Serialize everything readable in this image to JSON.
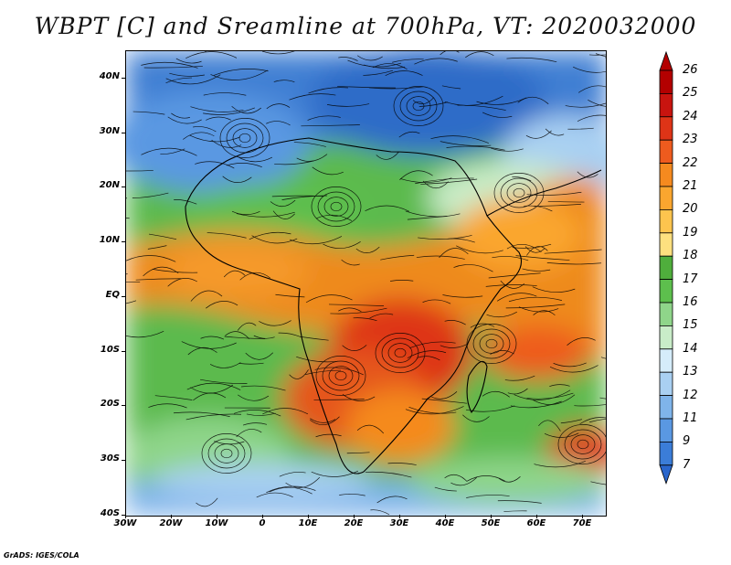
{
  "title": "WBPT [C] and Sreamline at 700hPa, VT: 2020032000",
  "footer": "GrADS: IGES/COLA",
  "map": {
    "lon_range": [
      -30,
      75
    ],
    "lat_range": [
      -40,
      45
    ],
    "y_ticks": [
      "40N",
      "30N",
      "20N",
      "10N",
      "EQ",
      "10S",
      "20S",
      "30S",
      "40S"
    ],
    "x_ticks": [
      "30W",
      "20W",
      "10W",
      "0",
      "10E",
      "20E",
      "30E",
      "40E",
      "50E",
      "60E",
      "70E"
    ],
    "field_regions": [
      {
        "name": "north-cold",
        "color": "#3f82d6"
      },
      {
        "name": "tropical-warm",
        "color": "#ee8a1e"
      },
      {
        "name": "southern-green",
        "color": "#54b54a"
      },
      {
        "name": "far-south-cold",
        "color": "#7fb7ea"
      }
    ]
  },
  "colorbar": {
    "levels": [
      "26",
      "25",
      "24",
      "23",
      "22",
      "21",
      "20",
      "19",
      "18",
      "17",
      "16",
      "15",
      "14",
      "13",
      "12",
      "11",
      "9",
      "7"
    ],
    "colors": [
      "#b30000",
      "#c8140f",
      "#de3417",
      "#ee5b1e",
      "#f58a1f",
      "#faa62f",
      "#fdc44e",
      "#fde07f",
      "#4fae3c",
      "#5dbf4d",
      "#8fd58a",
      "#c9ecc8",
      "#d5ecfa",
      "#a9d0f2",
      "#7fb4ea",
      "#5a98e2",
      "#3b7dd8",
      "#2a66cc"
    ]
  }
}
